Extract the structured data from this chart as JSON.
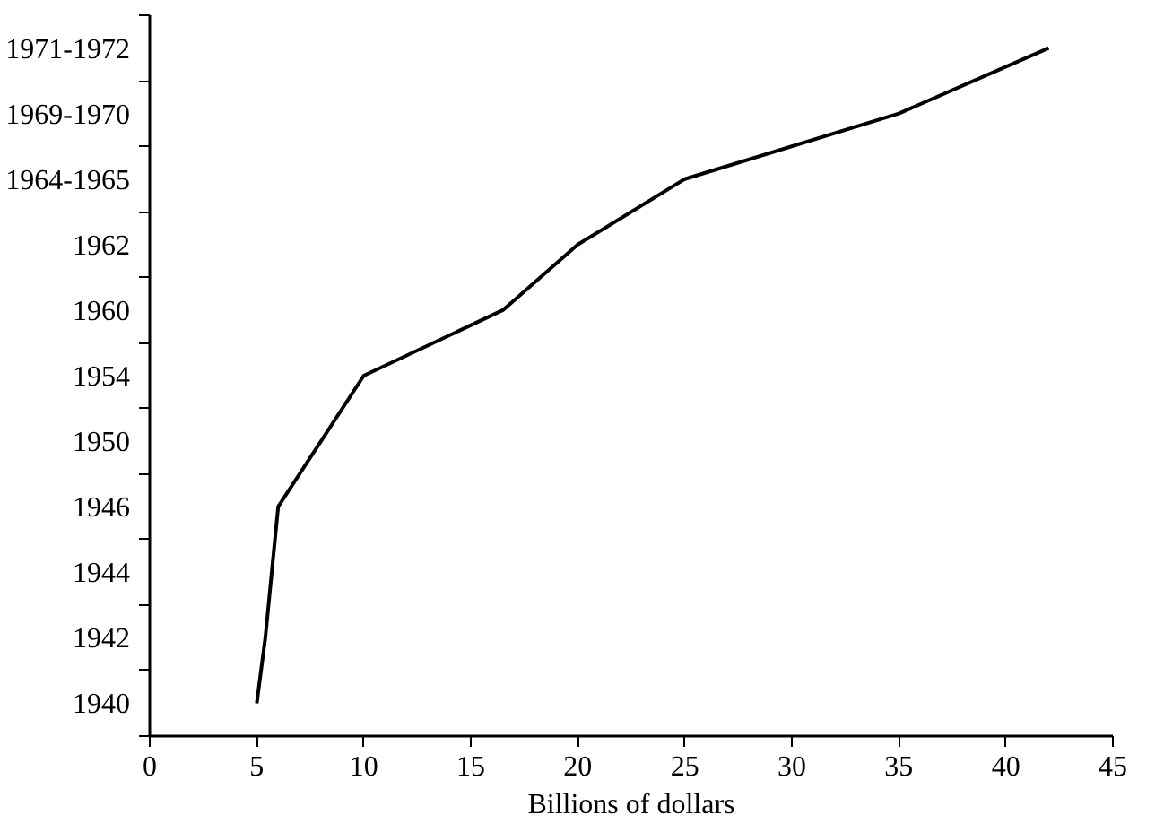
{
  "chart_data": {
    "type": "line",
    "orientation": "horizontal",
    "xlabel": "Billions of dollars",
    "categories": [
      "1971-1972",
      "1969-1970",
      "1964-1965",
      "1962",
      "1960",
      "1954",
      "1950",
      "1946",
      "1944",
      "1942",
      "1940"
    ],
    "series": [
      {
        "color": "#000000",
        "values": [
          42,
          35,
          25,
          20,
          16.5,
          10,
          8,
          6,
          5.7,
          5.4,
          5
        ]
      }
    ],
    "xlim": [
      0,
      45
    ],
    "xticks": [
      0,
      5,
      10,
      15,
      20,
      25,
      30,
      35,
      40,
      45
    ],
    "grid": false,
    "marker": "none",
    "line_style": "solid"
  }
}
